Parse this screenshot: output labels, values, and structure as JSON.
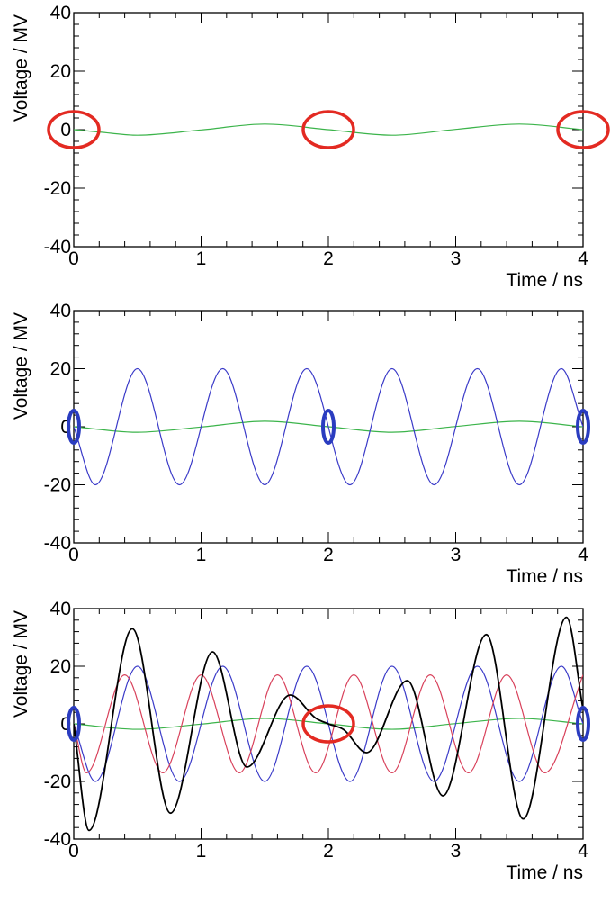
{
  "chart_data": [
    {
      "type": "line",
      "xlabel": "Time / ns",
      "ylabel": "Voltage / MV",
      "xlim": [
        0,
        4
      ],
      "ylim": [
        -40,
        40
      ],
      "x_ticks": [
        "0",
        "1",
        "2",
        "3",
        "4"
      ],
      "y_ticks": [
        "-40",
        "-20",
        "0",
        "20",
        "40"
      ],
      "grid": false,
      "series": [
        {
          "color": "#3cb44b",
          "x": [
            0,
            0.2,
            0.5,
            1.0,
            1.5,
            2.0,
            2.5,
            3.0,
            3.5,
            4.0
          ],
          "y": [
            0,
            -0.8,
            -1.9,
            -0.1,
            1.9,
            0.0,
            -1.9,
            0.1,
            1.9,
            0
          ]
        }
      ],
      "annotations": [
        {
          "shape": "ellipse",
          "color": "#e32a22",
          "at": [
            0,
            0
          ]
        },
        {
          "shape": "ellipse",
          "color": "#e32a22",
          "at": [
            2,
            0
          ]
        },
        {
          "shape": "ellipse",
          "color": "#e32a22",
          "at": [
            4,
            0
          ]
        }
      ]
    },
    {
      "type": "line",
      "xlabel": "Time / ns",
      "ylabel": "Voltage / MV",
      "xlim": [
        0,
        4
      ],
      "ylim": [
        -40,
        40
      ],
      "x_ticks": [
        "0",
        "1",
        "2",
        "3",
        "4"
      ],
      "y_ticks": [
        "-40",
        "-20",
        "0",
        "20",
        "40"
      ],
      "grid": false,
      "series": [
        {
          "color": "#3cb44b",
          "x": [
            0,
            0.5,
            1.0,
            1.5,
            2.0,
            2.5,
            3.0,
            3.5,
            4.0
          ],
          "y": [
            0,
            -1.9,
            -0.1,
            1.9,
            0.0,
            -1.9,
            0.1,
            1.9,
            0
          ]
        },
        {
          "color": "#3a3ac8",
          "x": [
            0,
            0.17,
            0.5,
            0.83,
            1.17,
            1.5,
            1.83,
            2.17,
            2.5,
            2.83,
            3.17,
            3.5,
            3.83,
            4.0
          ],
          "y": [
            0,
            -20,
            20,
            -20,
            20,
            -20,
            20,
            -20,
            20,
            -20,
            20,
            -20,
            20,
            0
          ]
        }
      ],
      "annotations": [
        {
          "shape": "ellipse",
          "color": "#2a3cc0",
          "at": [
            0,
            0
          ]
        },
        {
          "shape": "ellipse",
          "color": "#2a3cc0",
          "at": [
            2,
            0
          ]
        },
        {
          "shape": "ellipse",
          "color": "#2a3cc0",
          "at": [
            4,
            0
          ]
        }
      ]
    },
    {
      "type": "line",
      "xlabel": "Time / ns",
      "ylabel": "Voltage / MV",
      "xlim": [
        0,
        4
      ],
      "ylim": [
        -40,
        40
      ],
      "x_ticks": [
        "0",
        "1",
        "2",
        "3",
        "4"
      ],
      "y_ticks": [
        "-40",
        "-20",
        "0",
        "20",
        "40"
      ],
      "grid": false,
      "series": [
        {
          "color": "#3cb44b",
          "x": [
            0,
            0.5,
            1.0,
            1.5,
            2.0,
            2.5,
            3.0,
            3.5,
            4.0
          ],
          "y": [
            0,
            -1.9,
            -0.1,
            1.9,
            0.0,
            -1.9,
            0.1,
            1.9,
            0
          ]
        },
        {
          "color": "#3a3ac8",
          "x": [
            0,
            0.17,
            0.5,
            0.83,
            1.17,
            1.5,
            1.83,
            2.17,
            2.5,
            2.83,
            3.17,
            3.5,
            3.83,
            4.0
          ],
          "y": [
            0,
            -20,
            20,
            -20,
            20,
            -20,
            20,
            -20,
            20,
            -20,
            20,
            -20,
            20,
            0
          ]
        },
        {
          "color": "#d8405a",
          "x": [
            0,
            0.1,
            0.4,
            0.7,
            1.0,
            1.3,
            1.6,
            1.9,
            2.2,
            2.5,
            2.8,
            3.1,
            3.4,
            3.7,
            4.0
          ],
          "y": [
            0,
            -17,
            17,
            -17,
            17,
            -17,
            17,
            -17,
            17,
            -17,
            17,
            -17,
            17,
            -17,
            17
          ]
        },
        {
          "color": "#000000",
          "x": [
            0,
            0.12,
            0.46,
            0.76,
            1.09,
            1.36,
            1.7,
            1.9,
            2.0,
            2.12,
            2.3,
            2.62,
            2.9,
            3.24,
            3.53,
            3.87,
            4.0
          ],
          "y": [
            0,
            -37,
            33,
            -31,
            25,
            -15,
            10,
            2,
            0,
            -2,
            -10,
            15,
            -25,
            31,
            -33,
            37,
            5
          ]
        }
      ],
      "annotations": [
        {
          "shape": "ellipse",
          "color": "#e32a22",
          "at": [
            2,
            0
          ]
        },
        {
          "shape": "ellipse",
          "color": "#2a3cc0",
          "at": [
            0,
            0
          ]
        },
        {
          "shape": "ellipse",
          "color": "#2a3cc0",
          "at": [
            4,
            0
          ]
        }
      ]
    }
  ]
}
